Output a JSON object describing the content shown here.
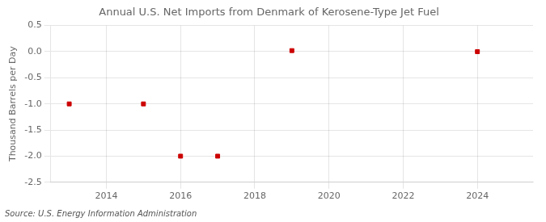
{
  "chart_data": {
    "type": "scatter",
    "title": "Annual U.S. Net Imports from Denmark of Kerosene-Type Jet Fuel",
    "ylabel": "Thousand Barrels per Day",
    "annotations": [
      "Source: U.S. Energy Information Administration"
    ],
    "x": [
      2013,
      2015,
      2016,
      2017,
      2019,
      2024
    ],
    "values": [
      -1.0,
      -1.0,
      -2.0,
      -2.0,
      0.02,
      0.0
    ],
    "color": "#cc0000",
    "marker": "square",
    "xlim": [
      2012.5,
      2025.5
    ],
    "ylim": [
      -2.5,
      0.5
    ],
    "xticks": [
      2014,
      2016,
      2018,
      2020,
      2022,
      2024
    ],
    "yticks": [
      0.5,
      {
        "value": 0.0,
        "label": "0.0"
      },
      -0.5,
      {
        "value": -1.0,
        "label": "-1.0"
      },
      -1.5,
      {
        "value": -2.0,
        "label": "-2.0"
      },
      {
        "value": -2.5,
        "label": "-2.5"
      }
    ],
    "grid": true
  }
}
